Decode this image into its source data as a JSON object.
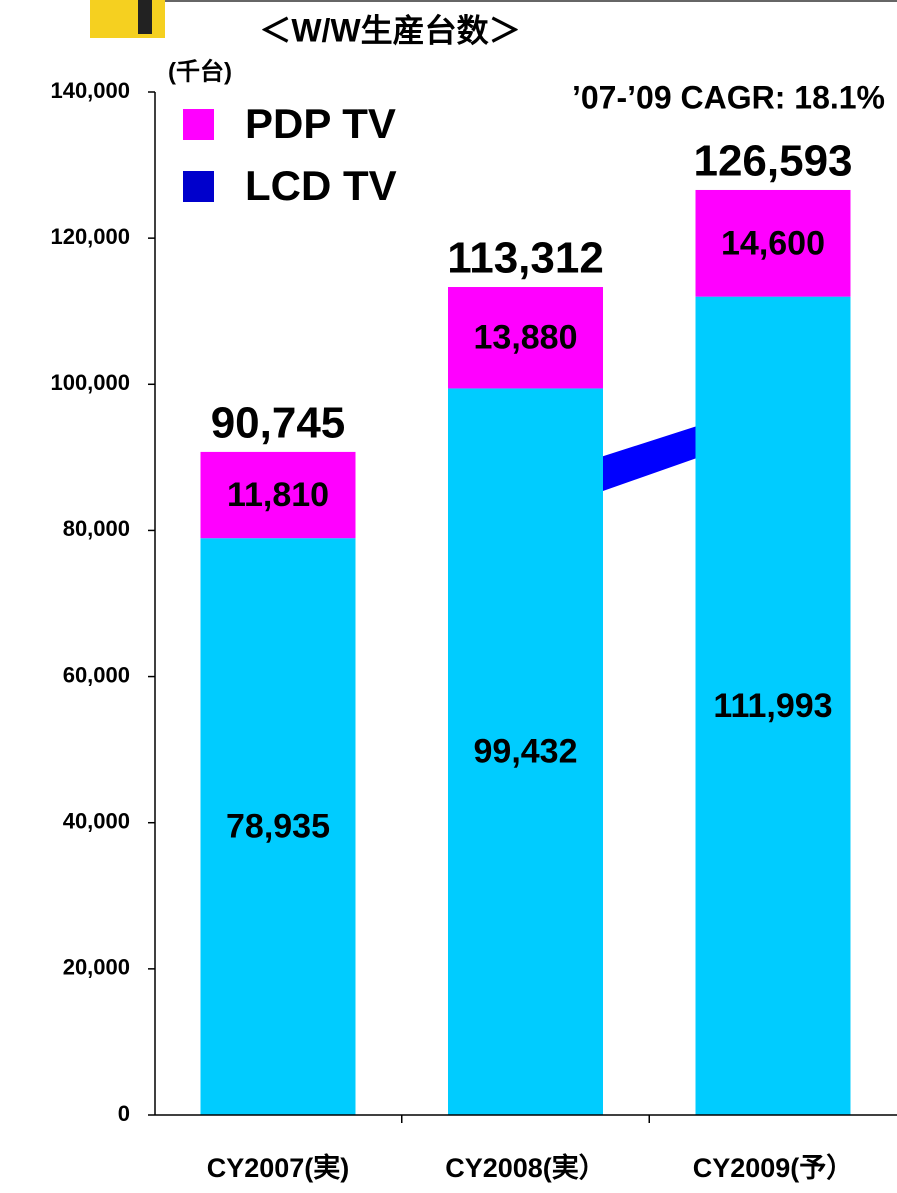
{
  "chart_data": {
    "type": "stacked_bar",
    "title": "＜W/W生産台数＞",
    "y_unit": "(千台)",
    "annotation": "’07-’09 CAGR: 18.1%",
    "categories": [
      "CY2007(実)",
      "CY2008(実）",
      "CY2009(予）"
    ],
    "series": [
      {
        "name": "LCD TV",
        "color": "#00ccff",
        "legend_color": "#0000cc",
        "values": [
          78935,
          99432,
          111993
        ],
        "value_labels": [
          "78,935",
          "99,432",
          "111,993"
        ]
      },
      {
        "name": "PDP TV",
        "color": "#ff00ff",
        "legend_color": "#ff00ff",
        "values": [
          11810,
          13880,
          14600
        ],
        "value_labels": [
          "11,810",
          "13,880",
          "14,600"
        ]
      }
    ],
    "totals": [
      90745,
      113312,
      126593
    ],
    "total_labels": [
      "90,745",
      "113,312",
      "126,593"
    ],
    "ylim": [
      0,
      140000
    ],
    "yticks": [
      0,
      {
        "value": 20000,
        "label": "20,000"
      },
      {
        "value": 40000,
        "label": "40,000"
      },
      {
        "value": 60000,
        "label": "60,000"
      },
      {
        "value": 80000,
        "label": "80,000"
      },
      {
        "value": 100000,
        "label": "100,000"
      },
      {
        "value": 120000,
        "label": "120,000"
      },
      {
        "value": 140000,
        "label": "140,000"
      }
    ],
    "legend": "upper left"
  }
}
